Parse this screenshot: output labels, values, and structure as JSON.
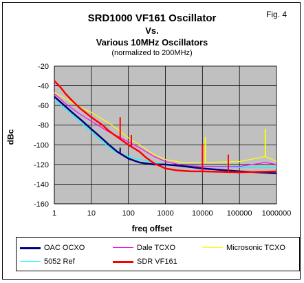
{
  "figure_label": "Fig. 4",
  "chart_data": {
    "type": "line",
    "title": "SRD1000 VF161 Oscillator",
    "subtitle": "Vs.",
    "subtitle2": "Various 10MHz Oscillators",
    "subtitle3": "(normalized to 200MHz)",
    "xlabel": "freq offset",
    "ylabel": "dBc",
    "xscale": "log",
    "xlim": [
      1,
      1000000
    ],
    "ylim": [
      -160,
      -20
    ],
    "x_ticks": [
      "1",
      "10",
      "100",
      "1000",
      "10000",
      "100000",
      "1000000"
    ],
    "y_ticks": [
      "-20",
      "-40",
      "-60",
      "-80",
      "-100",
      "-120",
      "-140",
      "-160"
    ],
    "grid": true,
    "legend_position": "bottom",
    "series": [
      {
        "name": "OAC OCXO",
        "color": "#000080",
        "x": [
          1,
          2,
          3,
          5,
          10,
          20,
          30,
          50,
          100,
          200,
          300,
          500,
          1000,
          2000,
          10000,
          100000,
          1000000
        ],
        "y": [
          -51,
          -61,
          -67,
          -74,
          -84,
          -94,
          -100,
          -107,
          -114,
          -118,
          -119,
          -120,
          -120,
          -121,
          -124,
          -127,
          -129
        ]
      },
      {
        "name": "Dale TCXO",
        "color": "#ff00ff",
        "x": [
          1,
          2,
          3,
          5,
          10,
          20,
          30,
          50,
          100,
          200,
          500,
          1000,
          3000,
          10000,
          100000,
          500000,
          1000000
        ],
        "y": [
          -48,
          -58,
          -63,
          -69,
          -76,
          -83,
          -87,
          -91,
          -97,
          -103,
          -112,
          -117,
          -121,
          -122,
          -122,
          -118,
          -120
        ]
      },
      {
        "name": "Microsonic TCXO",
        "color": "#ffff00",
        "x": [
          1,
          2,
          3,
          5,
          10,
          20,
          30,
          50,
          100,
          200,
          500,
          1000,
          3000,
          10000,
          100000,
          500000,
          1000000
        ],
        "y": [
          -47,
          -53,
          -57,
          -62,
          -67,
          -74,
          -78,
          -84,
          -93,
          -100,
          -110,
          -115,
          -118,
          -118,
          -117,
          -112,
          -117
        ]
      },
      {
        "name": "5052 Ref",
        "color": "#00ffff",
        "x": [
          1,
          2,
          3,
          5,
          10,
          20,
          30,
          50,
          100,
          200,
          500,
          1000,
          10000,
          100000,
          1000000
        ],
        "y": [
          -55,
          -63,
          -69,
          -77,
          -87,
          -97,
          -103,
          -108,
          -112,
          -115,
          -118,
          -120,
          -122,
          -123,
          -123
        ]
      },
      {
        "name": "SDR VF161",
        "color": "#ff0000",
        "x": [
          1,
          1.5,
          2,
          3,
          5,
          10,
          20,
          30,
          50,
          100,
          200,
          300,
          500,
          1000,
          2000,
          5000,
          10000,
          100000,
          1000000
        ],
        "y": [
          -35,
          -42,
          -48,
          -55,
          -63,
          -72,
          -80,
          -86,
          -92,
          -100,
          -107,
          -113,
          -119,
          -124,
          -126,
          -127,
          -127,
          -128,
          -127
        ]
      }
    ],
    "spurs": [
      {
        "series": "SDR VF161",
        "x": 60,
        "y": -72
      },
      {
        "series": "SDR VF161",
        "x": 120,
        "y": -90
      },
      {
        "series": "SDR VF161",
        "x": 10000,
        "y": -100
      },
      {
        "series": "SDR VF161",
        "x": 50000,
        "y": -110
      },
      {
        "series": "Microsonic TCXO",
        "x": 500000,
        "y": -84
      },
      {
        "series": "Microsonic TCXO",
        "x": 12000,
        "y": -92
      },
      {
        "series": "OAC OCXO",
        "x": 60,
        "y": -103
      }
    ]
  }
}
